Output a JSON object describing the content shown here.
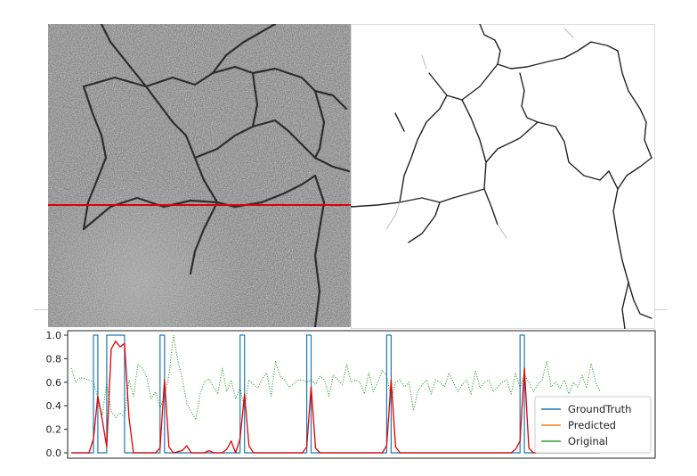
{
  "images": {
    "left_icon": "pavement-photo-icon",
    "right_icon": "crack-map-icon",
    "scanline_color": "#e00000"
  },
  "colors": {
    "ground_truth": "#1f77b4",
    "predicted": "#ff7f0e",
    "original": "#2ca02c",
    "predicted_overlay": "#e00000"
  },
  "chart_data": {
    "type": "line",
    "title": "",
    "xlabel": "",
    "ylabel": "",
    "ylim": [
      0.0,
      1.0
    ],
    "yticks": [
      "0.0",
      "0.2",
      "0.4",
      "0.6",
      "0.8",
      "1.0"
    ],
    "xticks": [],
    "grid": false,
    "legend_position": "bottom-right",
    "x": [
      0,
      5,
      10,
      15,
      20,
      25,
      30,
      35,
      40,
      45,
      50,
      55,
      60,
      65,
      70,
      75,
      80,
      85,
      90,
      95,
      100,
      105,
      110,
      115,
      120,
      125,
      130,
      135,
      140,
      145,
      150,
      155,
      160,
      165,
      170,
      175,
      180,
      185,
      190,
      195,
      200,
      205,
      210,
      215,
      220,
      225,
      230,
      235,
      240,
      245,
      250,
      255,
      260,
      265,
      270,
      275,
      280,
      285,
      290,
      295,
      300,
      305,
      310,
      315,
      320,
      325,
      330,
      335,
      340,
      345,
      350,
      355,
      360,
      365,
      370,
      375,
      380,
      385,
      390,
      395,
      400,
      405,
      410,
      415,
      420,
      425,
      430,
      435,
      440,
      445,
      450,
      455,
      460,
      465,
      470,
      475,
      480,
      485,
      490,
      495,
      500,
      505,
      510,
      515,
      520,
      525,
      530,
      535,
      540,
      545,
      550,
      555,
      560,
      565,
      570,
      575,
      580,
      585,
      590,
      595
    ],
    "series": [
      {
        "name": "GroundTruth",
        "values": [
          0,
          0,
          0,
          0,
          0,
          0,
          1,
          0,
          0,
          1,
          1,
          1,
          1,
          0,
          0,
          0,
          0,
          0,
          0,
          0,
          0,
          1,
          0,
          0,
          0,
          0,
          0,
          0,
          0,
          0,
          0,
          0,
          0,
          0,
          0,
          0,
          0,
          0,
          0,
          1,
          0,
          0,
          0,
          0,
          0,
          0,
          0,
          0,
          0,
          0,
          0,
          0,
          0,
          0,
          1,
          0,
          0,
          0,
          0,
          0,
          0,
          0,
          0,
          0,
          0,
          0,
          0,
          0,
          0,
          0,
          0,
          0,
          1,
          0,
          0,
          0,
          0,
          0,
          0,
          0,
          0,
          0,
          0,
          0,
          0,
          0,
          0,
          0,
          0,
          0,
          0,
          0,
          0,
          0,
          0,
          0,
          0,
          0,
          0,
          0,
          0,
          0,
          1,
          0,
          0,
          0,
          0,
          0,
          0,
          0,
          0,
          0,
          0,
          0,
          0,
          0,
          0,
          0,
          0,
          0
        ]
      },
      {
        "name": "Predicted",
        "values": [
          0,
          0,
          0,
          0,
          0,
          0.12,
          0.48,
          0.28,
          0.05,
          0.88,
          0.95,
          0.9,
          0.93,
          0.3,
          0,
          0,
          0,
          0,
          0,
          0,
          0.04,
          0.62,
          0.05,
          0,
          0.01,
          0.02,
          0.06,
          0,
          0,
          0,
          0,
          0.02,
          0,
          0,
          0,
          0.03,
          0.1,
          0,
          0.12,
          0.5,
          0.06,
          0,
          0,
          0,
          0,
          0,
          0,
          0,
          0,
          0,
          0,
          0,
          0,
          0.05,
          0.56,
          0.04,
          0,
          0,
          0,
          0,
          0,
          0,
          0,
          0,
          0,
          0,
          0,
          0,
          0,
          0,
          0,
          0.06,
          0.62,
          0.05,
          0,
          0,
          0,
          0,
          0,
          0,
          0,
          0,
          0,
          0,
          0,
          0,
          0,
          0,
          0,
          0,
          0,
          0,
          0,
          0,
          0,
          0,
          0,
          0,
          0,
          0,
          0.03,
          0.1,
          0.72,
          0.04,
          0,
          0,
          0,
          0,
          0,
          0,
          0,
          0,
          0,
          0,
          0,
          0,
          0,
          0,
          0,
          0
        ]
      },
      {
        "name": "Original",
        "values": [
          0.72,
          0.6,
          0.64,
          0.63,
          0.62,
          0.6,
          0.47,
          0.32,
          0.6,
          0.35,
          0.3,
          0.34,
          0.3,
          0.62,
          0.48,
          0.75,
          0.72,
          0.64,
          0.46,
          0.52,
          0.38,
          0.48,
          0.66,
          1.0,
          0.78,
          0.63,
          0.42,
          0.35,
          0.28,
          0.5,
          0.6,
          0.63,
          0.56,
          0.5,
          0.72,
          0.52,
          0.62,
          0.46,
          0.55,
          0.38,
          0.62,
          0.58,
          0.55,
          0.63,
          0.68,
          0.48,
          0.78,
          0.65,
          0.62,
          0.56,
          0.58,
          0.62,
          0.62,
          0.6,
          0.62,
          0.58,
          0.65,
          0.62,
          0.48,
          0.66,
          0.62,
          0.58,
          0.75,
          0.6,
          0.62,
          0.6,
          0.5,
          0.68,
          0.52,
          0.6,
          0.7,
          0.66,
          0.45,
          0.6,
          0.62,
          0.56,
          0.6,
          0.36,
          0.52,
          0.58,
          0.62,
          0.5,
          0.62,
          0.6,
          0.56,
          0.68,
          0.6,
          0.52,
          0.58,
          0.62,
          0.5,
          0.7,
          0.55,
          0.6,
          0.62,
          0.52,
          0.56,
          0.6,
          0.62,
          0.5,
          0.68,
          0.55,
          0.66,
          0.6,
          0.52,
          0.58,
          0.62,
          0.78,
          0.56,
          0.6,
          0.55,
          0.62,
          0.5,
          0.6,
          0.56,
          0.66,
          0.55,
          0.76,
          0.6,
          0.52
        ]
      }
    ]
  }
}
